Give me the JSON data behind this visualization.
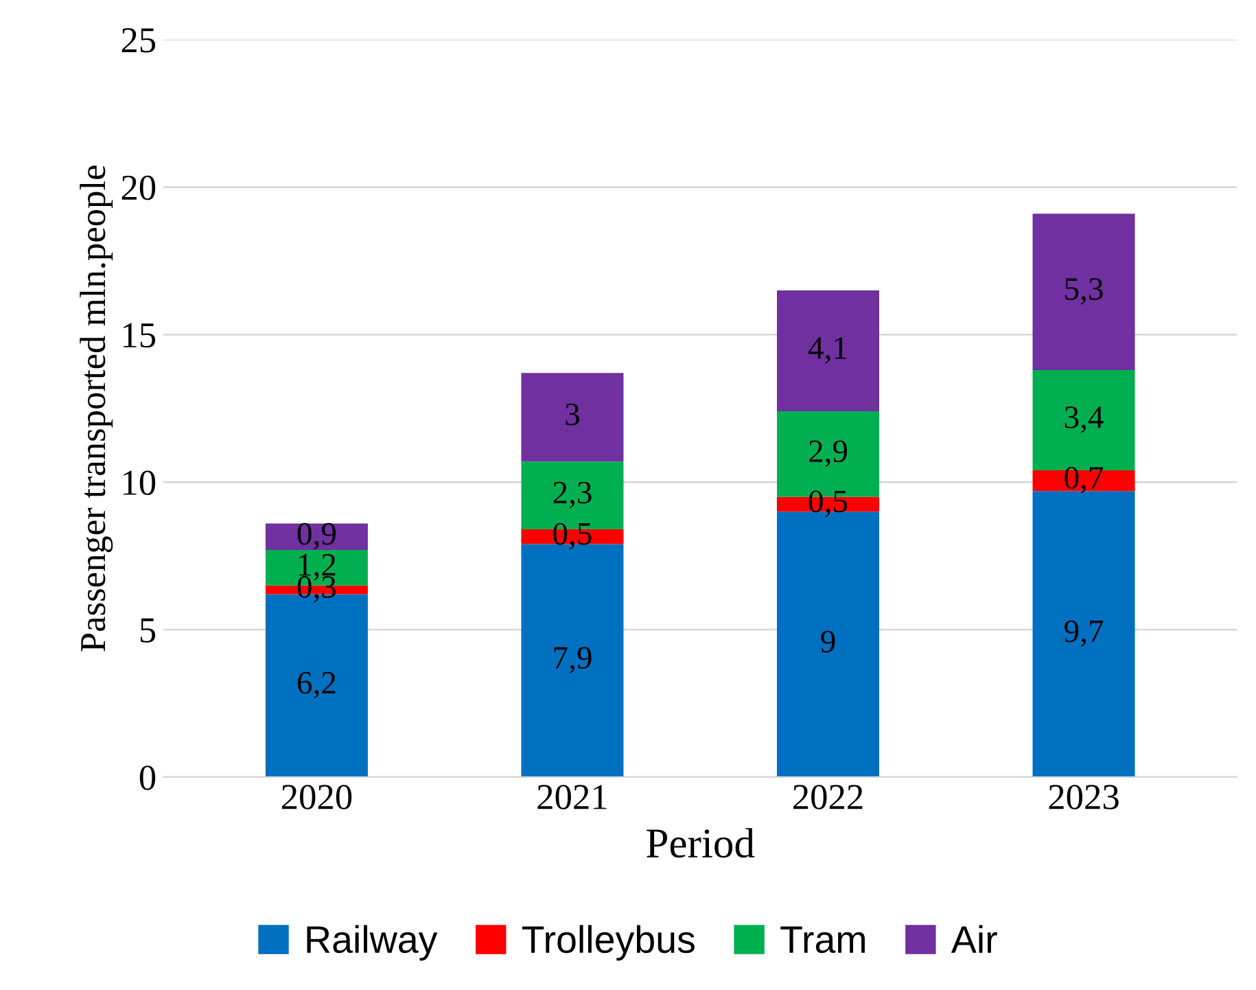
{
  "chart_data": {
    "type": "bar",
    "stacked": true,
    "xlabel": "Period",
    "ylabel": "Passenger transported mln.people",
    "categories": [
      "2020",
      "2021",
      "2022",
      "2023"
    ],
    "series": [
      {
        "name": "Railway",
        "color": "#0070c0",
        "values": [
          6.2,
          7.9,
          9,
          9.7
        ],
        "value_labels": [
          "6,2",
          "7,9",
          "9",
          "9,7"
        ]
      },
      {
        "name": "Trolleybus",
        "color": "#ff0000",
        "values": [
          0.3,
          0.5,
          0.5,
          0.7
        ],
        "value_labels": [
          "0,3",
          "0,5",
          "0,5",
          "0,7"
        ]
      },
      {
        "name": "Tram",
        "color": "#00b050",
        "values": [
          1.2,
          2.3,
          2.9,
          3.4
        ],
        "value_labels": [
          "1,2",
          "2,3",
          "2,9",
          "3,4"
        ]
      },
      {
        "name": "Air",
        "color": "#7030a0",
        "values": [
          0.9,
          3,
          4.1,
          5.3
        ],
        "value_labels": [
          "0,9",
          "3",
          "4,1",
          "5,3"
        ]
      }
    ],
    "ylim": [
      0,
      25
    ],
    "yticks": [
      0,
      5,
      10,
      15,
      20,
      25
    ],
    "grid": "y",
    "legend": "bottom"
  }
}
